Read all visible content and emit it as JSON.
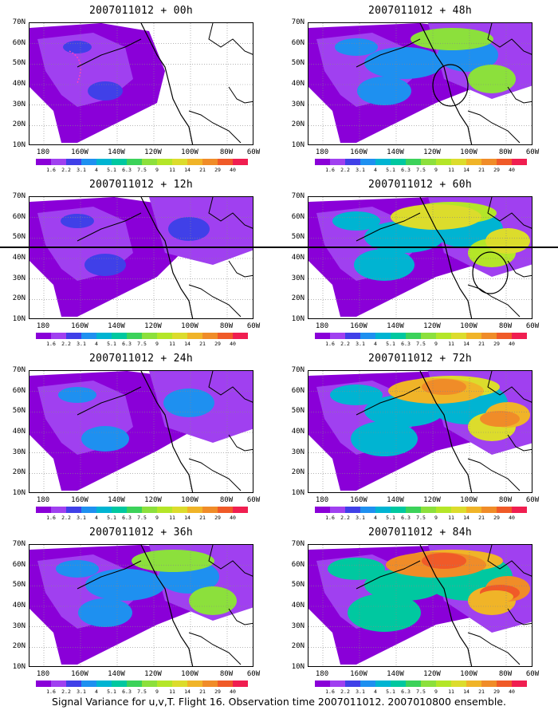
{
  "caption": "Signal Variance for u,v,T. Flight 16. Observation time 2007011012. 2007010800 ensemble.",
  "y_ticks": [
    "70N",
    "60N",
    "50N",
    "40N",
    "30N",
    "20N",
    "10N"
  ],
  "x_ticks": [
    "180",
    "160W",
    "140W",
    "120W",
    "100W",
    "80W",
    "60W"
  ],
  "colorbar": {
    "labels": [
      "1.6",
      "2.2",
      "3.1",
      "4",
      "5.1",
      "6.3",
      "7.5",
      "9",
      "11",
      "14",
      "21",
      "29",
      "40"
    ],
    "colors": [
      "#8a00d8",
      "#a040f0",
      "#4040e8",
      "#1e90f0",
      "#00b4d2",
      "#00c8a0",
      "#3cd25a",
      "#8ce03c",
      "#b4e628",
      "#dcdc2c",
      "#f0b428",
      "#f08c28",
      "#f05a28",
      "#f01e50"
    ]
  },
  "panels": [
    {
      "title": "2007011012 + 00h"
    },
    {
      "title": "2007011012 + 48h"
    },
    {
      "title": "2007011012 + 12h"
    },
    {
      "title": "2007011012 + 60h"
    },
    {
      "title": "2007011012 + 24h"
    },
    {
      "title": "2007011012 + 72h"
    },
    {
      "title": "2007011012 + 36h"
    },
    {
      "title": "2007011012 + 84h"
    }
  ]
}
